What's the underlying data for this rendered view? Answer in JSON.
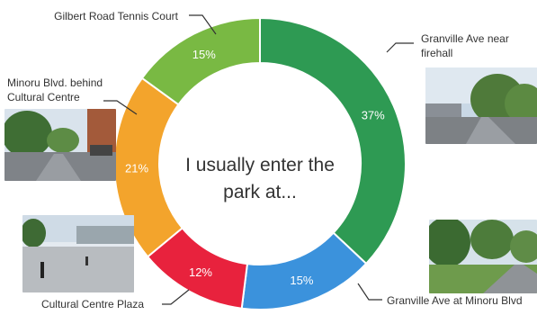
{
  "chart_data": {
    "type": "donut",
    "title": "I usually enter the park at...",
    "title_lines": [
      "I usually enter the",
      "park at..."
    ],
    "slices": [
      {
        "label": "Granville Ave near firehall",
        "label_lines": [
          "Granville Ave near",
          "firehall"
        ],
        "value": 37,
        "value_label": "37%",
        "color": "#2e9a53"
      },
      {
        "label": "Granville Ave at Minoru Blvd",
        "label_lines": [
          "Granville Ave at Minoru Blvd"
        ],
        "value": 15,
        "value_label": "15%",
        "color": "#3b92dc"
      },
      {
        "label": "Cultural Centre Plaza",
        "label_lines": [
          "Cultural Centre Plaza"
        ],
        "value": 12,
        "value_label": "12%",
        "color": "#e8223d"
      },
      {
        "label": "Minoru Blvd. behind Cultural Centre",
        "label_lines": [
          "Minoru Blvd. behind",
          "Cultural Centre"
        ],
        "value": 21,
        "value_label": "21%",
        "color": "#f3a42c"
      },
      {
        "label": "Gilbert Road Tennis Court",
        "label_lines": [
          "Gilbert Road Tennis Court"
        ],
        "value": 15,
        "value_label": "15%",
        "color": "#79b943"
      }
    ]
  }
}
